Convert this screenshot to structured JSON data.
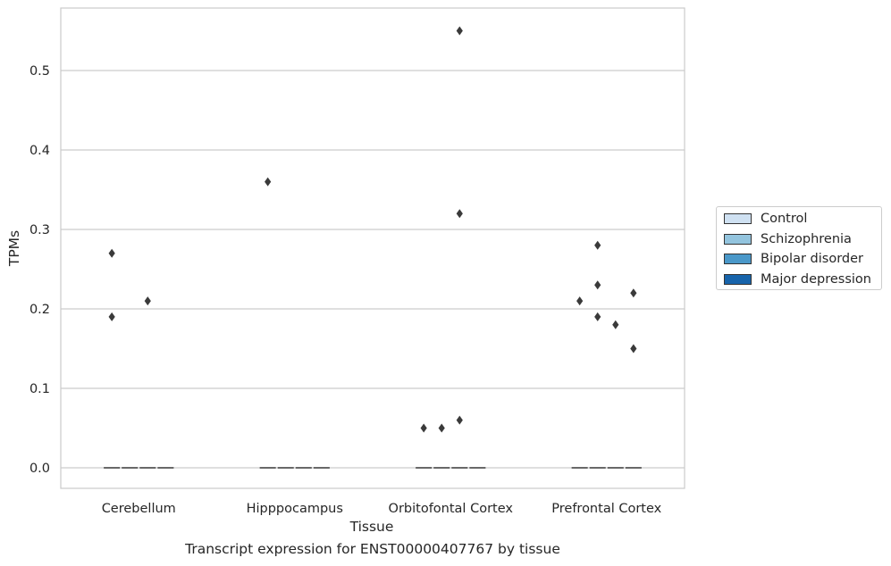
{
  "chart_data": {
    "type": "boxplot",
    "xlabel": "Tissue",
    "ylabel": "TPMs",
    "ylim": [
      -0.027,
      0.579
    ],
    "yticks": [
      0.0,
      0.1,
      0.2,
      0.3,
      0.4,
      0.5
    ],
    "ytick_labels": [
      "0.0",
      "0.1",
      "0.2",
      "0.3",
      "0.4",
      "0.5"
    ],
    "grid": true,
    "legend_position": "right-outside",
    "categories": [
      "Cerebellum",
      "Hipppocampus",
      "Orbitofontal Cortex",
      "Prefrontal Cortex"
    ],
    "series": [
      {
        "name": "Control",
        "color": "#cfe1f2",
        "medians": [
          0,
          0,
          0,
          0
        ],
        "outliers": [
          [
            0.27,
            0.19
          ],
          [
            0.36
          ],
          [
            0.05
          ],
          [
            0.21
          ]
        ]
      },
      {
        "name": "Schizophrenia",
        "color": "#93c4de",
        "medians": [
          0,
          0,
          0,
          0
        ],
        "outliers": [
          [],
          [],
          [
            0.05
          ],
          [
            0.28,
            0.23,
            0.19
          ]
        ]
      },
      {
        "name": "Bipolar disorder",
        "color": "#4a98c9",
        "medians": [
          0,
          0,
          0,
          0
        ],
        "outliers": [
          [
            0.21
          ],
          [],
          [
            0.55,
            0.32,
            0.06
          ],
          [
            0.18
          ]
        ]
      },
      {
        "name": "Major depression",
        "color": "#1764ab",
        "medians": [
          0,
          0,
          0,
          0
        ],
        "outliers": [
          [],
          [],
          [],
          [
            0.22,
            0.15
          ]
        ]
      }
    ]
  },
  "caption": "Transcript expression for ENST00000407767 by tissue"
}
